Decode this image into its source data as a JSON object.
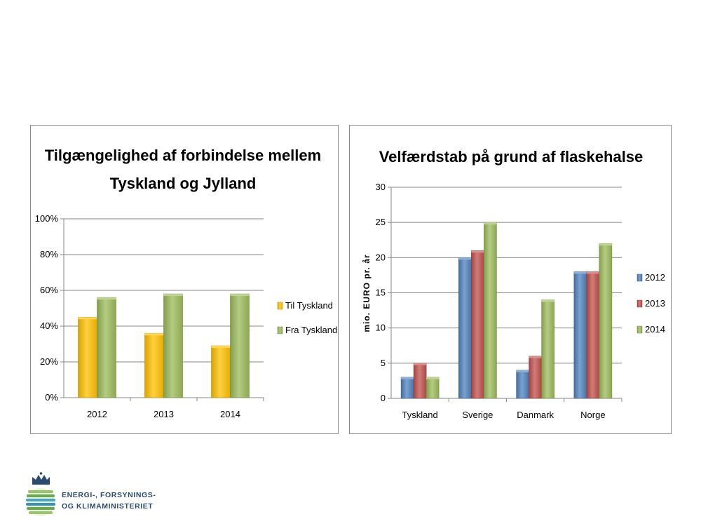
{
  "chart_data": [
    {
      "type": "bar",
      "title": "Tilgængelighed af forbindelse mellem Tyskland og Jylland",
      "title_lines": [
        "Tilgængelighed af forbindelse mellem",
        "Tyskland og Jylland"
      ],
      "categories": [
        "2012",
        "2013",
        "2014"
      ],
      "series": [
        {
          "name": "Til Tyskland",
          "values": [
            45,
            36,
            29
          ],
          "color": "#ffc000"
        },
        {
          "name": "Fra Tyskland",
          "values": [
            56,
            58,
            58
          ],
          "color": "#9bbb59"
        }
      ],
      "xlabel": "",
      "ylabel": "",
      "ylim": [
        0,
        100
      ],
      "yticks": [
        "0%",
        "20%",
        "40%",
        "60%",
        "80%",
        "100%"
      ],
      "grid": true,
      "legend": "right"
    },
    {
      "type": "bar",
      "title": "Velfærdstab på grund af flaskehalse",
      "categories": [
        "Tyskland",
        "Sverige",
        "Danmark",
        "Norge"
      ],
      "series": [
        {
          "name": "2012",
          "values": [
            3,
            20,
            4,
            18
          ],
          "color": "#4f81bd"
        },
        {
          "name": "2013",
          "values": [
            5,
            21,
            6,
            18
          ],
          "color": "#c0504d"
        },
        {
          "name": "2014",
          "values": [
            3,
            25,
            14,
            22
          ],
          "color": "#9bbb59"
        }
      ],
      "xlabel": "",
      "ylabel": "mio. EURO pr. år",
      "ylim": [
        0,
        30
      ],
      "yticks": [
        "0",
        "5",
        "10",
        "15",
        "20",
        "25",
        "30"
      ],
      "grid": true,
      "legend": "right"
    }
  ],
  "logo": {
    "line1": "ENERGI-, FORSYNINGS-",
    "line2": "OG KLIMAMINISTERIET"
  }
}
